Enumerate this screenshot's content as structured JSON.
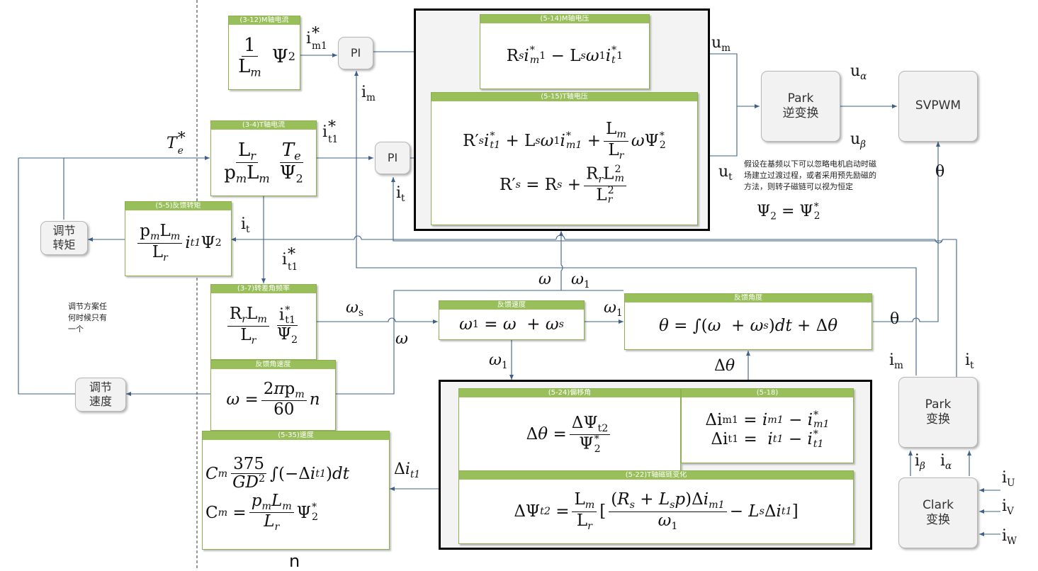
{
  "boxes": {
    "m_current": "(3-12)M轴电流",
    "m_voltage": "(5-14)M轴电压",
    "t_current": "(3-4)T轴电流",
    "t_voltage": "(5-15)T轴电压",
    "torque_feedback": "(5-5)反馈转矩",
    "slip_frequency": "(3-7)转差角频率",
    "feedback_speed": "反馈速度",
    "feedback_angle": "反馈角度",
    "angular_speed": "反馈角速度",
    "speed": "(5-35)速度",
    "offset_angle": "(5-24)偏移角",
    "current_error": "(5-18)",
    "flux_change": "(5-22)T轴磁链变化"
  },
  "blocks": {
    "pi_m": "PI",
    "pi_t": "PI",
    "park_inverse_line1": "Park",
    "park_inverse_line2": "逆变换",
    "svpwm": "SVPWM",
    "park_line1": "Park",
    "park_line2": "变换",
    "clark_line1": "Clark",
    "clark_line2": "变换",
    "torque_reg_line1": "调节",
    "torque_reg_line2": "转矩",
    "speed_reg_line1": "调节",
    "speed_reg_line2": "速度"
  },
  "notes": {
    "flux_line1": "假设在基频以下可以忽略电机启动时磁",
    "flux_line2": "场建立过渡过程，或者采用预先励磁的",
    "flux_line3": "方法，则转子磁链可以视为恒定",
    "regulation_line1": "调节方案任",
    "regulation_line2": "何时候只有",
    "regulation_line3": "一个"
  },
  "labels": {
    "n": "n"
  }
}
